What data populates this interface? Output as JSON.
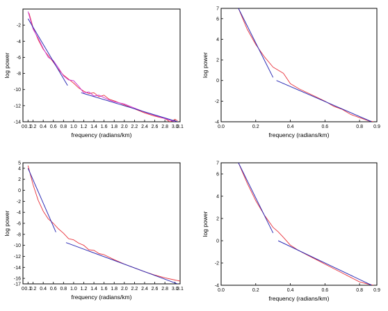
{
  "chart_data": [
    {
      "type": "line",
      "xlabel": "frequency (radians/km)",
      "ylabel": "log power",
      "xlim": [
        0,
        3.1
      ],
      "ylim": [
        -14,
        0
      ],
      "x_ticks": [
        0,
        0.1,
        0.2,
        0.4,
        0.6,
        0.8,
        1.0,
        1.2,
        1.4,
        1.6,
        1.8,
        2.0,
        2.2,
        2.4,
        2.6,
        2.8,
        3.0,
        3.1
      ],
      "x_tick_labels": [
        "0",
        "0.1",
        "0.2",
        "0.4",
        "0.6",
        "0.8",
        "1.0",
        "1.2",
        "1.4",
        "1.6",
        "1.8",
        "2.0",
        "2.2",
        "2.4",
        "2.6",
        "2.8",
        "3.0",
        "3.1"
      ],
      "y_ticks": [
        -2,
        -4,
        -6,
        -8,
        -10,
        -12,
        -14
      ],
      "y_tick_labels": [
        "-2",
        "-4",
        "-6",
        "-8",
        "-10",
        "-12",
        "-14"
      ],
      "grid": false,
      "series": [
        {
          "color": "#e8303a",
          "x": [
            0.12,
            0.2,
            0.3,
            0.4,
            0.5,
            0.6,
            0.7,
            0.8,
            0.9,
            1.0,
            1.1,
            1.2,
            1.3,
            1.4,
            1.5,
            1.6,
            1.7,
            1.8,
            2.0,
            2.2,
            2.4,
            2.6,
            2.8,
            2.9,
            3.0,
            3.05
          ],
          "y": [
            -0.5,
            -2.3,
            -3.8,
            -5.0,
            -5.8,
            -6.6,
            -7.5,
            -8.2,
            -8.7,
            -9.2,
            -9.8,
            -10.2,
            -10.5,
            -10.4,
            -10.9,
            -10.7,
            -11.2,
            -11.4,
            -11.9,
            -12.4,
            -12.9,
            -13.3,
            -13.6,
            -14.0,
            -13.7,
            -13.9
          ]
        },
        {
          "color": "#d03ad0",
          "x": [
            0.1,
            0.2,
            0.3,
            0.4,
            0.5,
            0.6,
            0.7,
            0.8,
            0.9,
            1.0,
            1.1,
            1.2,
            1.3,
            1.4,
            1.5,
            1.6,
            1.7,
            1.8,
            2.0,
            2.2,
            2.4,
            2.6,
            2.8,
            3.0
          ],
          "y": [
            -0.3,
            -2.5,
            -3.6,
            -4.9,
            -6.0,
            -6.4,
            -7.3,
            -8.3,
            -8.8,
            -8.9,
            -9.6,
            -10.4,
            -10.3,
            -10.8,
            -10.7,
            -11.0,
            -11.3,
            -11.5,
            -11.8,
            -12.3,
            -12.8,
            -13.2,
            -13.6,
            -14.0
          ]
        },
        {
          "color": "#2d2db5",
          "x": [
            0.1,
            0.88
          ],
          "y": [
            -1.2,
            -9.5
          ]
        },
        {
          "color": "#2d2db5",
          "x": [
            1.15,
            3.05
          ],
          "y": [
            -10.4,
            -14.0
          ]
        }
      ]
    },
    {
      "type": "line",
      "xlabel": "frequency (radians/km)",
      "ylabel": "log power",
      "xlim": [
        0,
        0.9
      ],
      "ylim": [
        -4,
        7
      ],
      "x_ticks": [
        0.0,
        0.2,
        0.4,
        0.6,
        0.8,
        0.9
      ],
      "x_tick_labels": [
        "0.0",
        "0.2",
        "0.4",
        "0.6",
        "0.8",
        "0.9"
      ],
      "y_ticks": [
        7,
        6,
        4,
        2,
        0,
        -2,
        -4
      ],
      "y_tick_labels": [
        "7",
        "6",
        "4",
        "2",
        "0",
        "-2",
        "-4"
      ],
      "grid": false,
      "series": [
        {
          "color": "#e8303a",
          "x": [
            0.1,
            0.15,
            0.2,
            0.25,
            0.3,
            0.33,
            0.36,
            0.4,
            0.45,
            0.5,
            0.55,
            0.6,
            0.65,
            0.7,
            0.75,
            0.8,
            0.85,
            0.88
          ],
          "y": [
            7.0,
            5.0,
            3.5,
            2.3,
            1.3,
            1.0,
            0.7,
            -0.3,
            -0.8,
            -1.2,
            -1.6,
            -2.0,
            -2.5,
            -2.8,
            -3.3,
            -3.6,
            -3.9,
            -4.0
          ]
        },
        {
          "color": "#2d2db5",
          "x": [
            0.1,
            0.3
          ],
          "y": [
            7.0,
            0.3
          ]
        },
        {
          "color": "#2d2db5",
          "x": [
            0.32,
            0.87
          ],
          "y": [
            0.0,
            -4.0
          ]
        }
      ]
    },
    {
      "type": "line",
      "xlabel": "frequency (radians/km)",
      "ylabel": "log power",
      "xlim": [
        0,
        3.1
      ],
      "ylim": [
        -17,
        5
      ],
      "x_ticks": [
        0,
        0.1,
        0.2,
        0.4,
        0.6,
        0.8,
        1.0,
        1.2,
        1.4,
        1.6,
        1.8,
        2.0,
        2.2,
        2.4,
        2.6,
        2.8,
        3.0,
        3.1
      ],
      "x_tick_labels": [
        "0",
        "0.1",
        "0.2",
        "0.4",
        "0.6",
        "0.8",
        "1.0",
        "1.2",
        "1.4",
        "1.6",
        "1.8",
        "2.0",
        "2.2",
        "2.4",
        "2.6",
        "2.8",
        "3.0",
        "3.1"
      ],
      "y_ticks": [
        5,
        4,
        2,
        0,
        -2,
        -4,
        -6,
        -8,
        -10,
        -12,
        -14,
        -16,
        -17
      ],
      "y_tick_labels": [
        "5",
        "4",
        "2",
        "0",
        "-2",
        "-4",
        "-6",
        "-8",
        "-10",
        "-12",
        "-14",
        "-16",
        "-17"
      ],
      "grid": false,
      "series": [
        {
          "color": "#e8303a",
          "x": [
            0.1,
            0.2,
            0.3,
            0.4,
            0.5,
            0.6,
            0.7,
            0.8,
            0.9,
            1.0,
            1.1,
            1.2,
            1.3,
            1.4,
            1.5,
            1.6,
            1.8,
            2.0,
            2.2,
            2.4,
            2.6,
            2.8,
            3.0,
            3.1
          ],
          "y": [
            4.5,
            1.0,
            -1.8,
            -3.8,
            -5.2,
            -6.0,
            -7.0,
            -7.8,
            -8.8,
            -9.0,
            -9.6,
            -10.0,
            -10.8,
            -10.9,
            -11.5,
            -11.7,
            -12.6,
            -13.4,
            -14.1,
            -14.8,
            -15.4,
            -15.9,
            -16.3,
            -16.5
          ]
        },
        {
          "color": "#2d2db5",
          "x": [
            0.1,
            0.65
          ],
          "y": [
            4.0,
            -7.6
          ]
        },
        {
          "color": "#2d2db5",
          "x": [
            0.85,
            3.05
          ],
          "y": [
            -9.5,
            -17.0
          ]
        }
      ]
    },
    {
      "type": "line",
      "xlabel": "frequency (radians/km)",
      "ylabel": "log power",
      "xlim": [
        0,
        0.9
      ],
      "ylim": [
        -4,
        7
      ],
      "x_ticks": [
        0.0,
        0.2,
        0.4,
        0.6,
        0.8,
        0.9
      ],
      "x_tick_labels": [
        "0.0",
        "0.2",
        "0.4",
        "0.6",
        "0.8",
        "0.9"
      ],
      "y_ticks": [
        7,
        6,
        4,
        2,
        0,
        -2,
        -4
      ],
      "y_tick_labels": [
        "7",
        "6",
        "4",
        "2",
        "0",
        "-2",
        "-4"
      ],
      "grid": false,
      "series": [
        {
          "color": "#e8303a",
          "x": [
            0.1,
            0.15,
            0.2,
            0.25,
            0.3,
            0.33,
            0.36,
            0.4,
            0.45,
            0.5,
            0.55,
            0.6,
            0.65,
            0.7,
            0.75,
            0.8,
            0.85,
            0.88
          ],
          "y": [
            7.0,
            5.2,
            3.6,
            2.3,
            1.2,
            0.8,
            0.3,
            -0.4,
            -0.9,
            -1.3,
            -1.7,
            -2.1,
            -2.5,
            -2.9,
            -3.3,
            -3.7,
            -3.9,
            -4.0
          ]
        },
        {
          "color": "#2d2db5",
          "x": [
            0.1,
            0.3
          ],
          "y": [
            7.0,
            0.7
          ]
        },
        {
          "color": "#2d2db5",
          "x": [
            0.33,
            0.87
          ],
          "y": [
            0.0,
            -4.0
          ]
        }
      ]
    }
  ]
}
